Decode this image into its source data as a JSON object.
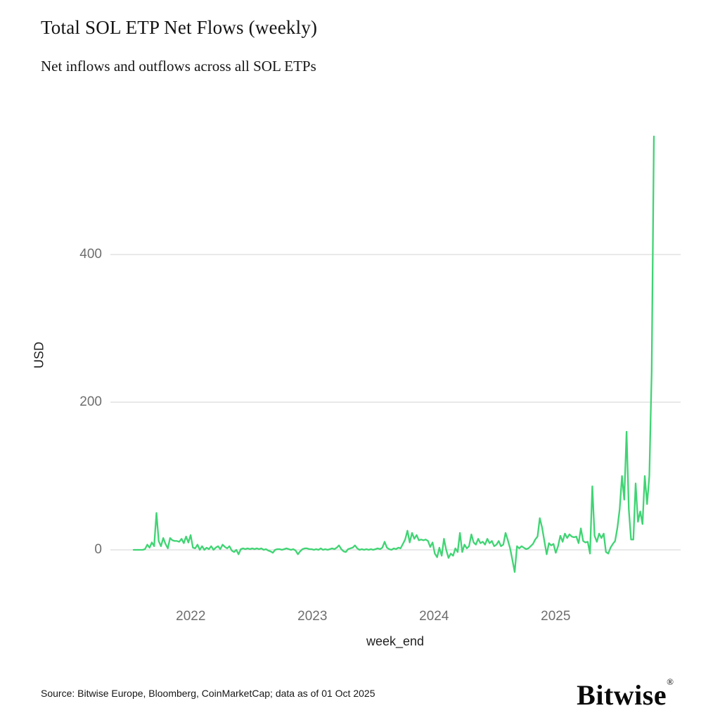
{
  "header": {
    "title": "Total SOL ETP Net Flows (weekly)",
    "subtitle": "Net inflows and outflows across all SOL ETPs"
  },
  "footer": {
    "source": "Source: Bitwise Europe, Bloomberg, CoinMarketCap; data as of 01 Oct 2025",
    "brand": "Bitwise",
    "brand_mark": "®"
  },
  "chart_data": {
    "type": "line",
    "title": "Total SOL ETP Net Flows (weekly)",
    "subtitle": "Net inflows and outflows across all SOL ETPs",
    "xlabel": "week_end",
    "ylabel": "USD",
    "frequency": "weekly",
    "x_ticks": [
      2022,
      2023,
      2024,
      2025
    ],
    "y_ticks": [
      0,
      200,
      400
    ],
    "ylim": [
      -60,
      620
    ],
    "x_start_year": 2021.53,
    "x_end_year": 2025.77,
    "grid": true,
    "legend": false,
    "line_color": "#3fd473",
    "grid_color": "#dcdcdc",
    "tick_color": "#6e6e6e",
    "series": [
      {
        "name": "Total SOL ETP net flows (USD)",
        "values": [
          0,
          0,
          0,
          0,
          0,
          1,
          7,
          3,
          10,
          5,
          50,
          12,
          5,
          16,
          8,
          2,
          16,
          13,
          12,
          12,
          11,
          15,
          9,
          18,
          10,
          20,
          3,
          2,
          7,
          0,
          5,
          0,
          3,
          1,
          5,
          0,
          3,
          5,
          1,
          7,
          4,
          2,
          5,
          -1,
          -3,
          0,
          -6,
          1,
          2,
          1,
          2,
          1,
          2,
          1,
          2,
          1,
          2,
          0,
          1,
          -1,
          -2,
          -4,
          0,
          1,
          1,
          0,
          1,
          2,
          1,
          0,
          1,
          -1,
          -6,
          -2,
          1,
          2,
          2,
          1,
          1,
          0,
          1,
          0,
          2,
          0,
          1,
          0,
          1,
          2,
          1,
          3,
          6,
          1,
          -2,
          -3,
          1,
          2,
          3,
          6,
          2,
          0,
          1,
          0,
          1,
          0,
          1,
          0,
          1,
          2,
          1,
          3,
          11,
          3,
          1,
          0,
          2,
          1,
          3,
          2,
          8,
          14,
          26,
          10,
          23,
          15,
          20,
          13,
          14,
          13,
          14,
          12,
          4,
          10,
          -5,
          -10,
          3,
          -8,
          15,
          0,
          -11,
          -5,
          -8,
          2,
          -3,
          23,
          -3,
          7,
          2,
          5,
          21,
          10,
          7,
          15,
          9,
          11,
          7,
          15,
          9,
          12,
          5,
          7,
          12,
          5,
          7,
          23,
          13,
          2,
          -14,
          -30,
          5,
          2,
          5,
          3,
          1,
          2,
          5,
          8,
          14,
          18,
          43,
          30,
          12,
          -6,
          9,
          6,
          8,
          -4,
          5,
          19,
          11,
          22,
          16,
          21,
          18,
          17,
          18,
          9,
          29,
          12,
          10,
          11,
          -5,
          86,
          19,
          11,
          22,
          16,
          22,
          -3,
          -5,
          3,
          8,
          12,
          30,
          55,
          100,
          68,
          160,
          55,
          14,
          14,
          90,
          38,
          52,
          35,
          100,
          62,
          100,
          240,
          560
        ]
      }
    ]
  }
}
